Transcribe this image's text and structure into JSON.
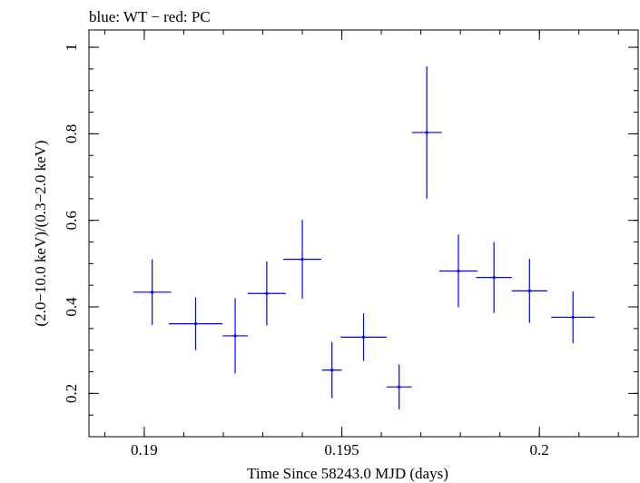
{
  "chart_data": {
    "type": "scatter",
    "title": "blue: WT − red: PC",
    "xlabel": "Time Since 58243.0 MJD (days)",
    "ylabel": "(2.0−10.0 keV)/(0.3−2.0 keV)",
    "xlim": [
      0.1886,
      0.2025
    ],
    "ylim": [
      0.1,
      1.04
    ],
    "x_ticks": [
      {
        "value": 0.19,
        "label": "0.19"
      },
      {
        "value": 0.195,
        "label": "0.195"
      },
      {
        "value": 0.2,
        "label": "0.2"
      }
    ],
    "y_ticks": [
      {
        "value": 0.2,
        "label": "0.2"
      },
      {
        "value": 0.4,
        "label": "0.4"
      },
      {
        "value": 0.6,
        "label": "0.6"
      },
      {
        "value": 0.8,
        "label": "0.8"
      },
      {
        "value": 1.0,
        "label": "1"
      }
    ],
    "x_minor_step": 0.001,
    "y_minor_step": 0.05,
    "grid": false,
    "series": [
      {
        "color": "#0000ff",
        "points": [
          {
            "x": 0.1902,
            "xerr": 0.00048,
            "y": 0.434,
            "yerr_lo": 0.076,
            "yerr_hi": 0.076
          },
          {
            "x": 0.1913,
            "xerr": 0.00068,
            "y": 0.361,
            "yerr_lo": 0.061,
            "yerr_hi": 0.061
          },
          {
            "x": 0.1923,
            "xerr": 0.00032,
            "y": 0.333,
            "yerr_lo": 0.087,
            "yerr_hi": 0.087
          },
          {
            "x": 0.1931,
            "xerr": 0.00048,
            "y": 0.431,
            "yerr_lo": 0.074,
            "yerr_hi": 0.074
          },
          {
            "x": 0.194,
            "xerr": 0.00048,
            "y": 0.51,
            "yerr_lo": 0.091,
            "yerr_hi": 0.091
          },
          {
            "x": 0.19475,
            "xerr": 0.00025,
            "y": 0.254,
            "yerr_lo": 0.065,
            "yerr_hi": 0.065
          },
          {
            "x": 0.19555,
            "xerr": 0.00058,
            "y": 0.33,
            "yerr_lo": 0.055,
            "yerr_hi": 0.055
          },
          {
            "x": 0.19645,
            "xerr": 0.00032,
            "y": 0.215,
            "yerr_lo": 0.052,
            "yerr_hi": 0.052
          },
          {
            "x": 0.19715,
            "xerr": 0.00038,
            "y": 0.803,
            "yerr_lo": 0.153,
            "yerr_hi": 0.153
          },
          {
            "x": 0.19795,
            "xerr": 0.00048,
            "y": 0.483,
            "yerr_lo": 0.084,
            "yerr_hi": 0.084
          },
          {
            "x": 0.19885,
            "xerr": 0.00045,
            "y": 0.468,
            "yerr_lo": 0.082,
            "yerr_hi": 0.082
          },
          {
            "x": 0.19975,
            "xerr": 0.00045,
            "y": 0.437,
            "yerr_lo": 0.074,
            "yerr_hi": 0.074
          },
          {
            "x": 0.20085,
            "xerr": 0.00055,
            "y": 0.376,
            "yerr_lo": 0.06,
            "yerr_hi": 0.06
          }
        ]
      }
    ]
  }
}
